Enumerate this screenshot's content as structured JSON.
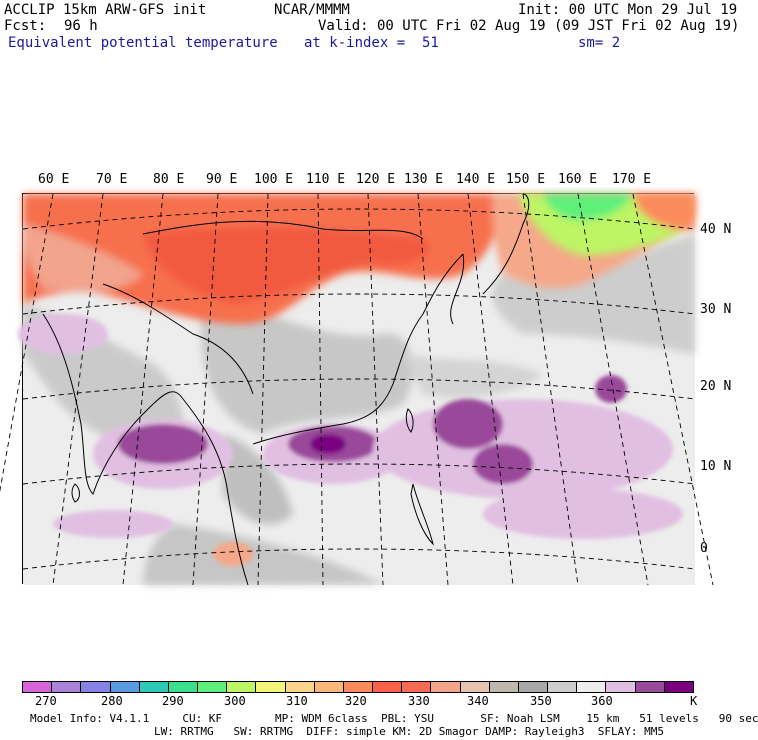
{
  "header": {
    "model": "ACCLIP 15km ARW-GFS init",
    "org": "NCAR/MMMM",
    "init": "Init: 00 UTC Mon 29 Jul 19",
    "fcst_label": "Fcst:",
    "fcst_value": "96 h",
    "valid": "Valid: 00 UTC Fri 02 Aug 19 (09 JST Fri 02 Aug 19)",
    "field": "Equivalent potential temperature",
    "level": "at k-index =  51",
    "smooth": "sm= 2"
  },
  "map": {
    "lon_labels": [
      "60 E",
      "70 E",
      "80 E",
      "90 E",
      "100 E",
      "110 E",
      "120 E",
      "130 E",
      "140 E",
      "150 E",
      "160 E",
      "170 E"
    ],
    "lat_labels": [
      "40 N",
      "30 N",
      "20 N",
      "10 N",
      "0"
    ]
  },
  "colorbar": {
    "colors": [
      "#d765d7",
      "#a984d9",
      "#8484e4",
      "#5a9ae0",
      "#2fc9b9",
      "#3ae08c",
      "#5ef07a",
      "#bdf565",
      "#f5f47a",
      "#fbd58a",
      "#fbb878",
      "#fa8c5b",
      "#f8634a",
      "#f56c52",
      "#f2a48d",
      "#e8c3ad",
      "#bfb8ae",
      "#a8a8a8",
      "#cdcdcd",
      "#ededed",
      "#e1bfe2",
      "#9a4a9a",
      "#7a0080"
    ],
    "labels": [
      "270",
      "280",
      "290",
      "300",
      "310",
      "320",
      "330",
      "340",
      "350",
      "360"
    ],
    "unit": "K"
  },
  "footer": {
    "line1": "Model Info: V4.1.1     CU: KF        MP: WDM 6class  PBL: YSU       SF: Noah LSM    15 km   51 levels   90 sec",
    "line2": "LW: RRTMG   SW: RRTMG  DIFF: simple KM: 2D Smagor DAMP: Rayleigh3  SFLAY: MM5"
  }
}
